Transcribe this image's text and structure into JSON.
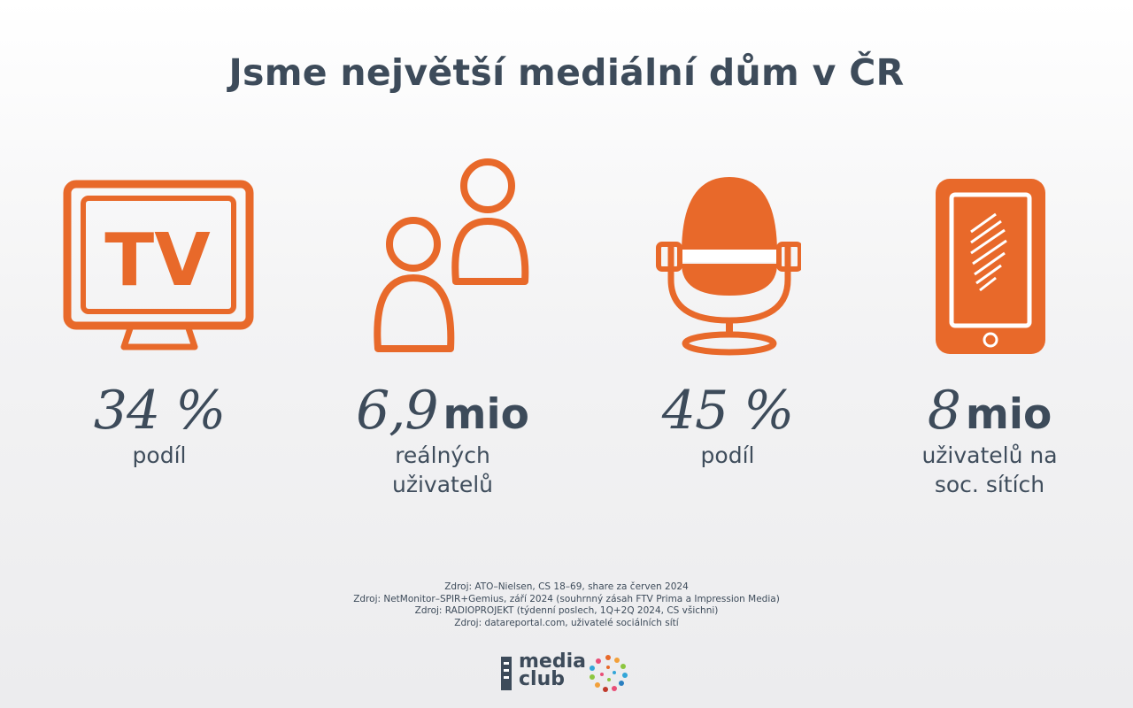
{
  "title": "Jsme největší mediální dům v ČR",
  "colors": {
    "accent": "#e8692a",
    "text": "#3d4b5a"
  },
  "stats": [
    {
      "icon": "tv-icon",
      "icon_text": "TV",
      "number": "34 %",
      "unit": "",
      "label": "podíl"
    },
    {
      "icon": "users-icon",
      "number": "6,9",
      "unit": "mio",
      "label": "reálných\nuživatelů"
    },
    {
      "icon": "microphone-icon",
      "number": "45 %",
      "unit": "",
      "label": "podíl"
    },
    {
      "icon": "smartphone-icon",
      "number": "8",
      "unit": "mio",
      "label": "uživatelů na\nsoc. sítích"
    }
  ],
  "sources": [
    "Zdroj: ATO–Nielsen, CS 18–69, share za červen 2024",
    "Zdroj: NetMonitor–SPIR+Gemius, září 2024 (souhrnný zásah FTV Prima a Impression Media)",
    "Zdroj: RADIOPROJEKT (týdenní poslech, 1Q+2Q 2024, CS všichni)",
    "Zdroj: datareportal.com, uživatelé sociálních sítí"
  ],
  "logo": {
    "line1": "media",
    "line2": "club"
  }
}
